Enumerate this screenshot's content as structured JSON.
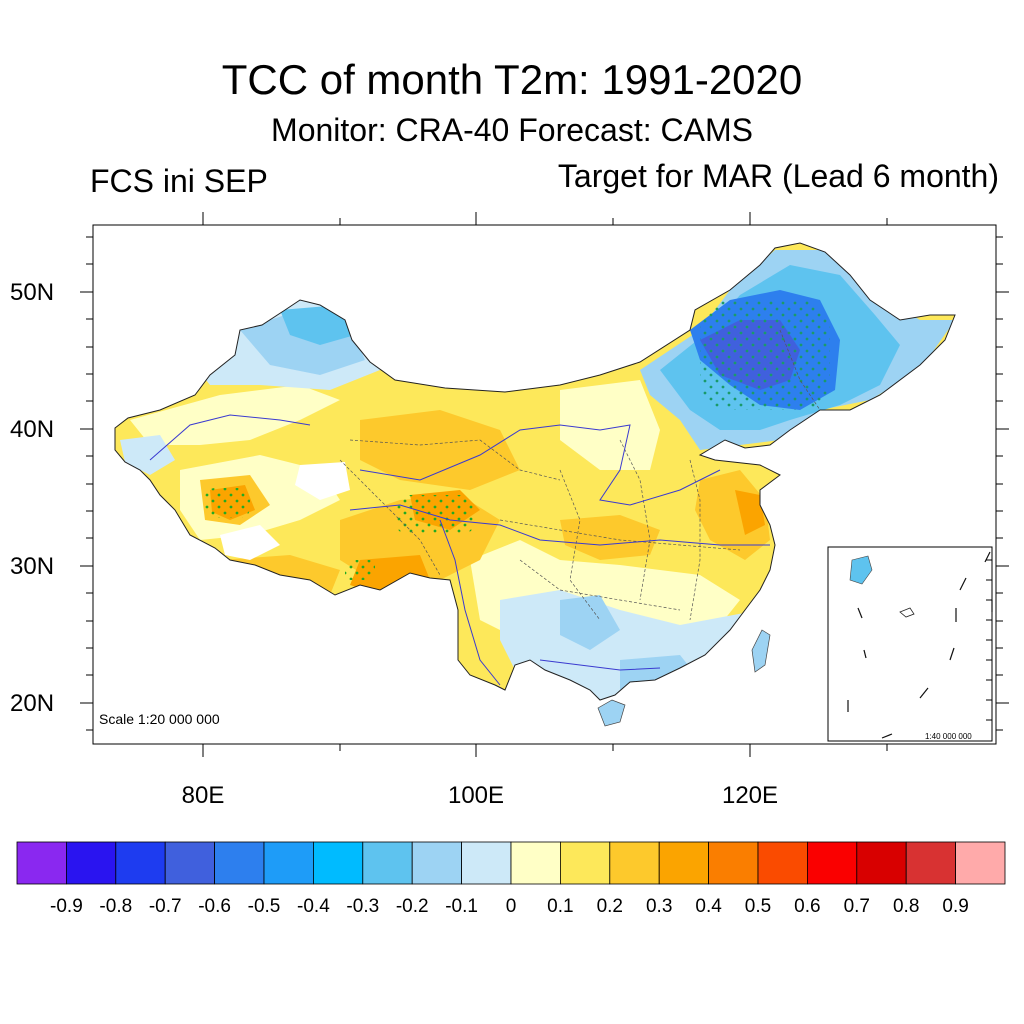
{
  "header": {
    "title": "TCC of month T2m: 1991-2020",
    "subtitle": "Monitor: CRA-40   Forecast: CAMS",
    "left_label": "FCS ini SEP",
    "right_label": "Target for MAR (Lead 6 month)"
  },
  "map": {
    "lat_labels": [
      "50N",
      "40N",
      "30N",
      "20N"
    ],
    "lon_labels": [
      "80E",
      "100E",
      "120E"
    ],
    "lat_values": [
      50,
      40,
      30,
      20
    ],
    "lon_values": [
      80,
      100,
      120
    ],
    "extent": {
      "lon": [
        72,
        138
      ],
      "lat": [
        17,
        55
      ]
    },
    "scale_text": "Scale 1:20 000 000",
    "inset_scale_text": "1:40 000 000",
    "stipple_color": "#22aa22"
  },
  "colorbar": {
    "labels": [
      "-0.9",
      "-0.8",
      "-0.7",
      "-0.6",
      "-0.5",
      "-0.4",
      "-0.3",
      "-0.2",
      "-0.1",
      "0",
      "0.1",
      "0.2",
      "0.3",
      "0.4",
      "0.5",
      "0.6",
      "0.7",
      "0.8",
      "0.9"
    ],
    "colors": [
      "#8a28f0",
      "#2a14f0",
      "#1e3cf0",
      "#4060dd",
      "#2d7fee",
      "#1e9cf8",
      "#00bbff",
      "#5ec3ef",
      "#9dd3f3",
      "#cde9f8",
      "#ffffc6",
      "#fde85a",
      "#fdc92c",
      "#fba400",
      "#fa7e00",
      "#fa4b00",
      "#fa0000",
      "#d80000",
      "#d83232",
      "#ffaaaa"
    ]
  }
}
